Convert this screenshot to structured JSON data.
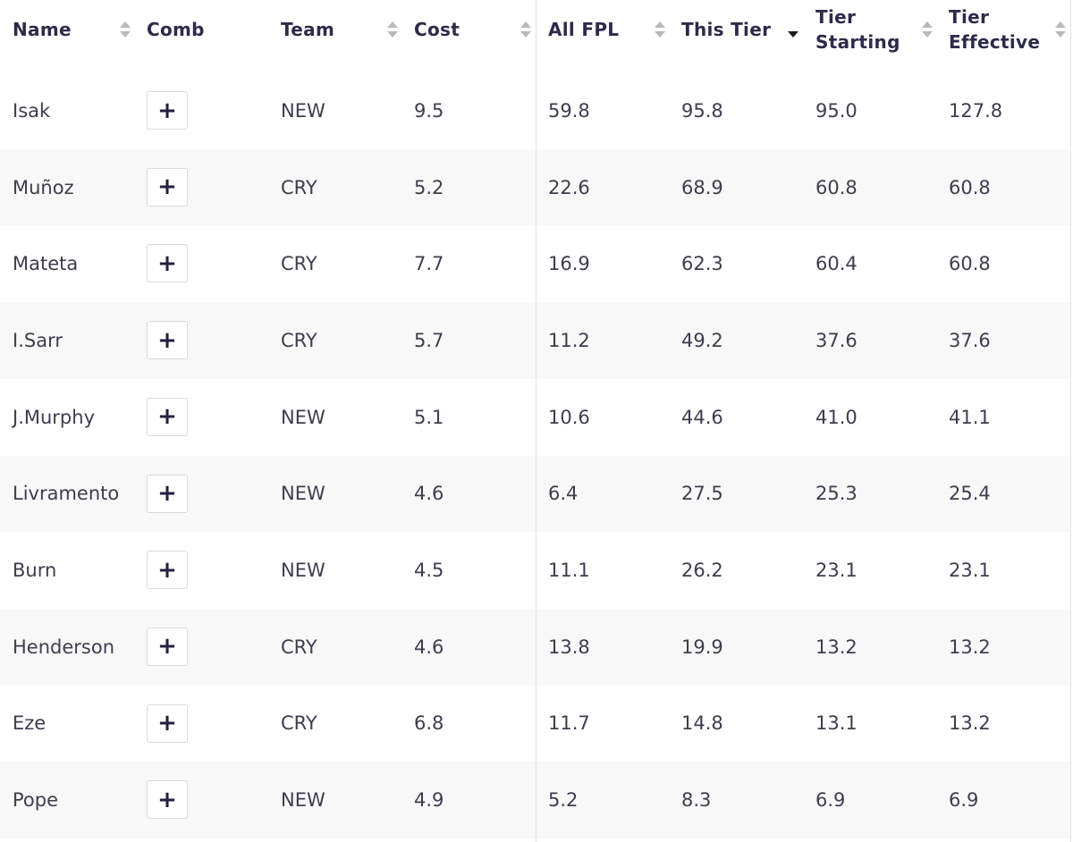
{
  "table": {
    "headers": [
      {
        "key": "name",
        "label": "Name"
      },
      {
        "key": "comb",
        "label": "Comb"
      },
      {
        "key": "team",
        "label": "Team"
      },
      {
        "key": "cost",
        "label": "Cost"
      },
      {
        "key": "all_fpl",
        "label": "All FPL"
      },
      {
        "key": "this_tier",
        "label": "This Tier"
      },
      {
        "key": "tier_starting",
        "label": "Tier Starting"
      },
      {
        "key": "tier_effective",
        "label": "Tier Effective"
      }
    ],
    "active_sort": {
      "column": "this_tier",
      "direction": "descending"
    },
    "add_button_symbol": "+",
    "rows": [
      {
        "name": "Isak",
        "team": "NEW",
        "cost": "9.5",
        "all_fpl": "59.8",
        "this_tier": "95.8",
        "tier_starting": "95.0",
        "tier_effective": "127.8"
      },
      {
        "name": "Muñoz",
        "team": "CRY",
        "cost": "5.2",
        "all_fpl": "22.6",
        "this_tier": "68.9",
        "tier_starting": "60.8",
        "tier_effective": "60.8"
      },
      {
        "name": "Mateta",
        "team": "CRY",
        "cost": "7.7",
        "all_fpl": "16.9",
        "this_tier": "62.3",
        "tier_starting": "60.4",
        "tier_effective": "60.8"
      },
      {
        "name": "I.Sarr",
        "team": "CRY",
        "cost": "5.7",
        "all_fpl": "11.2",
        "this_tier": "49.2",
        "tier_starting": "37.6",
        "tier_effective": "37.6"
      },
      {
        "name": "J.Murphy",
        "team": "NEW",
        "cost": "5.1",
        "all_fpl": "10.6",
        "this_tier": "44.6",
        "tier_starting": "41.0",
        "tier_effective": "41.1"
      },
      {
        "name": "Livramento",
        "team": "NEW",
        "cost": "4.6",
        "all_fpl": "6.4",
        "this_tier": "27.5",
        "tier_starting": "25.3",
        "tier_effective": "25.4"
      },
      {
        "name": "Burn",
        "team": "NEW",
        "cost": "4.5",
        "all_fpl": "11.1",
        "this_tier": "26.2",
        "tier_starting": "23.1",
        "tier_effective": "23.1"
      },
      {
        "name": "Henderson",
        "team": "CRY",
        "cost": "4.6",
        "all_fpl": "13.8",
        "this_tier": "19.9",
        "tier_starting": "13.2",
        "tier_effective": "13.2"
      },
      {
        "name": "Eze",
        "team": "CRY",
        "cost": "6.8",
        "all_fpl": "11.7",
        "this_tier": "14.8",
        "tier_starting": "13.1",
        "tier_effective": "13.2"
      },
      {
        "name": "Pope",
        "team": "NEW",
        "cost": "4.9",
        "all_fpl": "5.2",
        "this_tier": "8.3",
        "tier_starting": "6.9",
        "tier_effective": "6.9"
      }
    ]
  },
  "colors": {
    "header_text": "#2c2b4a",
    "body_text": "#3d3d4f",
    "alt_row": "#f8f8f8",
    "sort_inactive": "#b8b8be",
    "sort_active": "#1b1b22",
    "plus": "#23213f"
  },
  "icons": {
    "sort": "sort-updown-icon",
    "sort_active": "sort-descending-icon",
    "add": "plus-icon"
  }
}
